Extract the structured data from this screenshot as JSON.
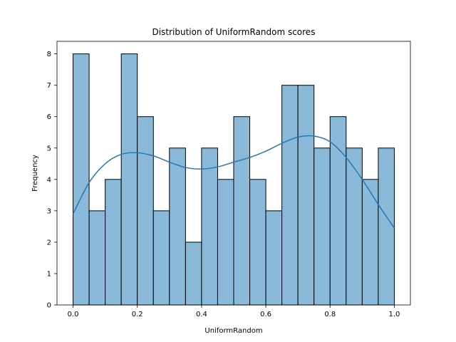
{
  "chart_data": {
    "type": "bar",
    "title": "Distribution of UniformRandom scores",
    "xlabel": "UniformRandom",
    "ylabel": "Frequency",
    "xlim": [
      -0.05,
      1.05
    ],
    "ylim": [
      0,
      8.4
    ],
    "xticks": [
      0.0,
      0.2,
      0.4,
      0.6,
      0.8,
      1.0
    ],
    "xtick_labels": [
      "0.0",
      "0.2",
      "0.4",
      "0.6",
      "0.8",
      "1.0"
    ],
    "yticks": [
      0,
      1,
      2,
      3,
      4,
      5,
      6,
      7,
      8
    ],
    "ytick_labels": [
      "0",
      "1",
      "2",
      "3",
      "4",
      "5",
      "6",
      "7",
      "8"
    ],
    "bin_edges": [
      0.0,
      0.05,
      0.1,
      0.15,
      0.2,
      0.25,
      0.3,
      0.35,
      0.4,
      0.45,
      0.5,
      0.55,
      0.6,
      0.65,
      0.7,
      0.75,
      0.8,
      0.85,
      0.9,
      0.95,
      1.0
    ],
    "values": [
      8,
      3,
      4,
      8,
      6,
      3,
      5,
      2,
      5,
      4,
      6,
      4,
      3,
      7,
      7,
      5,
      6,
      5,
      4,
      5
    ],
    "kde": {
      "x": [
        0.0,
        0.05,
        0.1,
        0.15,
        0.2,
        0.25,
        0.3,
        0.35,
        0.4,
        0.45,
        0.5,
        0.55,
        0.6,
        0.65,
        0.7,
        0.75,
        0.8,
        0.85,
        0.9,
        0.95,
        1.0
      ],
      "y": [
        2.9,
        3.9,
        4.5,
        4.8,
        4.85,
        4.75,
        4.55,
        4.38,
        4.33,
        4.4,
        4.55,
        4.7,
        4.9,
        5.15,
        5.35,
        5.38,
        5.2,
        4.7,
        4.0,
        3.2,
        2.45
      ]
    },
    "bar_color": "#8bb9da",
    "bar_edge_color": "#000000",
    "kde_color": "#2878b4",
    "grid": false,
    "legend": "none"
  }
}
